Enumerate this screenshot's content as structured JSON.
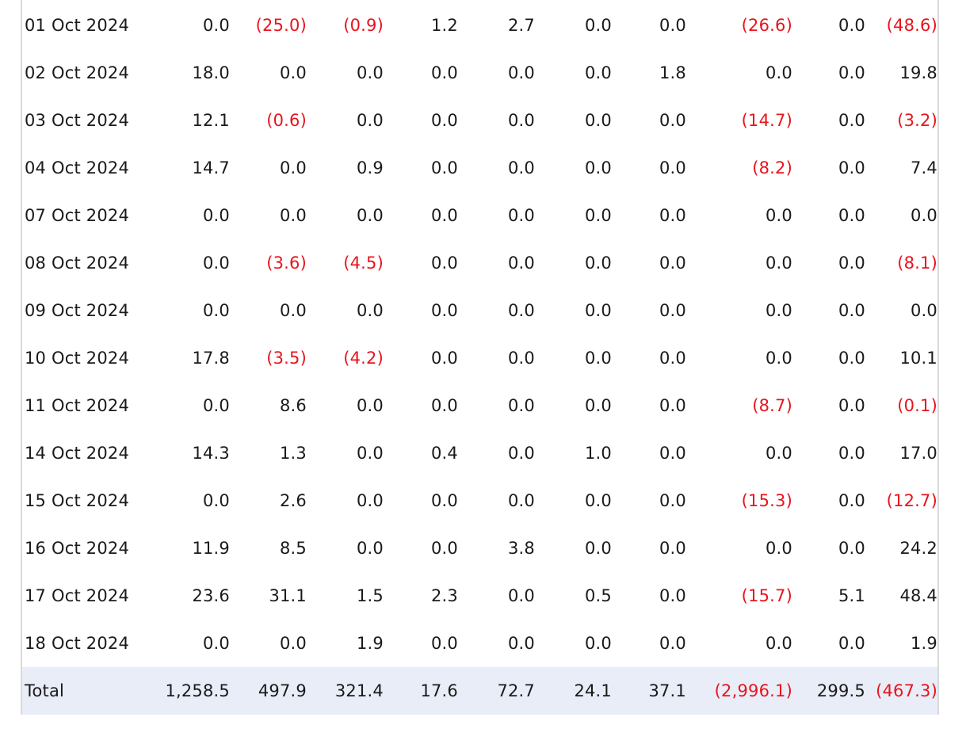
{
  "table": {
    "rows": [
      {
        "date": "01 Oct 2024",
        "cells": [
          {
            "v": "0.0",
            "neg": false
          },
          {
            "v": "(25.0)",
            "neg": true
          },
          {
            "v": "(0.9)",
            "neg": true
          },
          {
            "v": "1.2",
            "neg": false
          },
          {
            "v": "2.7",
            "neg": false
          },
          {
            "v": "0.0",
            "neg": false
          },
          {
            "v": "0.0",
            "neg": false
          },
          {
            "v": "(26.6)",
            "neg": true
          },
          {
            "v": "0.0",
            "neg": false
          },
          {
            "v": "(48.6)",
            "neg": true
          }
        ]
      },
      {
        "date": "02 Oct 2024",
        "cells": [
          {
            "v": "18.0",
            "neg": false
          },
          {
            "v": "0.0",
            "neg": false
          },
          {
            "v": "0.0",
            "neg": false
          },
          {
            "v": "0.0",
            "neg": false
          },
          {
            "v": "0.0",
            "neg": false
          },
          {
            "v": "0.0",
            "neg": false
          },
          {
            "v": "1.8",
            "neg": false
          },
          {
            "v": "0.0",
            "neg": false
          },
          {
            "v": "0.0",
            "neg": false
          },
          {
            "v": "19.8",
            "neg": false
          }
        ]
      },
      {
        "date": "03 Oct 2024",
        "cells": [
          {
            "v": "12.1",
            "neg": false
          },
          {
            "v": "(0.6)",
            "neg": true
          },
          {
            "v": "0.0",
            "neg": false
          },
          {
            "v": "0.0",
            "neg": false
          },
          {
            "v": "0.0",
            "neg": false
          },
          {
            "v": "0.0",
            "neg": false
          },
          {
            "v": "0.0",
            "neg": false
          },
          {
            "v": "(14.7)",
            "neg": true
          },
          {
            "v": "0.0",
            "neg": false
          },
          {
            "v": "(3.2)",
            "neg": true
          }
        ]
      },
      {
        "date": "04 Oct 2024",
        "cells": [
          {
            "v": "14.7",
            "neg": false
          },
          {
            "v": "0.0",
            "neg": false
          },
          {
            "v": "0.9",
            "neg": false
          },
          {
            "v": "0.0",
            "neg": false
          },
          {
            "v": "0.0",
            "neg": false
          },
          {
            "v": "0.0",
            "neg": false
          },
          {
            "v": "0.0",
            "neg": false
          },
          {
            "v": "(8.2)",
            "neg": true
          },
          {
            "v": "0.0",
            "neg": false
          },
          {
            "v": "7.4",
            "neg": false
          }
        ]
      },
      {
        "date": "07 Oct 2024",
        "cells": [
          {
            "v": "0.0",
            "neg": false
          },
          {
            "v": "0.0",
            "neg": false
          },
          {
            "v": "0.0",
            "neg": false
          },
          {
            "v": "0.0",
            "neg": false
          },
          {
            "v": "0.0",
            "neg": false
          },
          {
            "v": "0.0",
            "neg": false
          },
          {
            "v": "0.0",
            "neg": false
          },
          {
            "v": "0.0",
            "neg": false
          },
          {
            "v": "0.0",
            "neg": false
          },
          {
            "v": "0.0",
            "neg": false
          }
        ]
      },
      {
        "date": "08 Oct 2024",
        "cells": [
          {
            "v": "0.0",
            "neg": false
          },
          {
            "v": "(3.6)",
            "neg": true
          },
          {
            "v": "(4.5)",
            "neg": true
          },
          {
            "v": "0.0",
            "neg": false
          },
          {
            "v": "0.0",
            "neg": false
          },
          {
            "v": "0.0",
            "neg": false
          },
          {
            "v": "0.0",
            "neg": false
          },
          {
            "v": "0.0",
            "neg": false
          },
          {
            "v": "0.0",
            "neg": false
          },
          {
            "v": "(8.1)",
            "neg": true
          }
        ]
      },
      {
        "date": "09 Oct 2024",
        "cells": [
          {
            "v": "0.0",
            "neg": false
          },
          {
            "v": "0.0",
            "neg": false
          },
          {
            "v": "0.0",
            "neg": false
          },
          {
            "v": "0.0",
            "neg": false
          },
          {
            "v": "0.0",
            "neg": false
          },
          {
            "v": "0.0",
            "neg": false
          },
          {
            "v": "0.0",
            "neg": false
          },
          {
            "v": "0.0",
            "neg": false
          },
          {
            "v": "0.0",
            "neg": false
          },
          {
            "v": "0.0",
            "neg": false
          }
        ]
      },
      {
        "date": "10 Oct 2024",
        "cells": [
          {
            "v": "17.8",
            "neg": false
          },
          {
            "v": "(3.5)",
            "neg": true
          },
          {
            "v": "(4.2)",
            "neg": true
          },
          {
            "v": "0.0",
            "neg": false
          },
          {
            "v": "0.0",
            "neg": false
          },
          {
            "v": "0.0",
            "neg": false
          },
          {
            "v": "0.0",
            "neg": false
          },
          {
            "v": "0.0",
            "neg": false
          },
          {
            "v": "0.0",
            "neg": false
          },
          {
            "v": "10.1",
            "neg": false
          }
        ]
      },
      {
        "date": "11 Oct 2024",
        "cells": [
          {
            "v": "0.0",
            "neg": false
          },
          {
            "v": "8.6",
            "neg": false
          },
          {
            "v": "0.0",
            "neg": false
          },
          {
            "v": "0.0",
            "neg": false
          },
          {
            "v": "0.0",
            "neg": false
          },
          {
            "v": "0.0",
            "neg": false
          },
          {
            "v": "0.0",
            "neg": false
          },
          {
            "v": "(8.7)",
            "neg": true
          },
          {
            "v": "0.0",
            "neg": false
          },
          {
            "v": "(0.1)",
            "neg": true
          }
        ]
      },
      {
        "date": "14 Oct 2024",
        "cells": [
          {
            "v": "14.3",
            "neg": false
          },
          {
            "v": "1.3",
            "neg": false
          },
          {
            "v": "0.0",
            "neg": false
          },
          {
            "v": "0.4",
            "neg": false
          },
          {
            "v": "0.0",
            "neg": false
          },
          {
            "v": "1.0",
            "neg": false
          },
          {
            "v": "0.0",
            "neg": false
          },
          {
            "v": "0.0",
            "neg": false
          },
          {
            "v": "0.0",
            "neg": false
          },
          {
            "v": "17.0",
            "neg": false
          }
        ]
      },
      {
        "date": "15 Oct 2024",
        "cells": [
          {
            "v": "0.0",
            "neg": false
          },
          {
            "v": "2.6",
            "neg": false
          },
          {
            "v": "0.0",
            "neg": false
          },
          {
            "v": "0.0",
            "neg": false
          },
          {
            "v": "0.0",
            "neg": false
          },
          {
            "v": "0.0",
            "neg": false
          },
          {
            "v": "0.0",
            "neg": false
          },
          {
            "v": "(15.3)",
            "neg": true
          },
          {
            "v": "0.0",
            "neg": false
          },
          {
            "v": "(12.7)",
            "neg": true
          }
        ]
      },
      {
        "date": "16 Oct 2024",
        "cells": [
          {
            "v": "11.9",
            "neg": false
          },
          {
            "v": "8.5",
            "neg": false
          },
          {
            "v": "0.0",
            "neg": false
          },
          {
            "v": "0.0",
            "neg": false
          },
          {
            "v": "3.8",
            "neg": false
          },
          {
            "v": "0.0",
            "neg": false
          },
          {
            "v": "0.0",
            "neg": false
          },
          {
            "v": "0.0",
            "neg": false
          },
          {
            "v": "0.0",
            "neg": false
          },
          {
            "v": "24.2",
            "neg": false
          }
        ]
      },
      {
        "date": "17 Oct 2024",
        "cells": [
          {
            "v": "23.6",
            "neg": false
          },
          {
            "v": "31.1",
            "neg": false
          },
          {
            "v": "1.5",
            "neg": false
          },
          {
            "v": "2.3",
            "neg": false
          },
          {
            "v": "0.0",
            "neg": false
          },
          {
            "v": "0.5",
            "neg": false
          },
          {
            "v": "0.0",
            "neg": false
          },
          {
            "v": "(15.7)",
            "neg": true
          },
          {
            "v": "5.1",
            "neg": false
          },
          {
            "v": "48.4",
            "neg": false
          }
        ]
      },
      {
        "date": "18 Oct 2024",
        "cells": [
          {
            "v": "0.0",
            "neg": false
          },
          {
            "v": "0.0",
            "neg": false
          },
          {
            "v": "1.9",
            "neg": false
          },
          {
            "v": "0.0",
            "neg": false
          },
          {
            "v": "0.0",
            "neg": false
          },
          {
            "v": "0.0",
            "neg": false
          },
          {
            "v": "0.0",
            "neg": false
          },
          {
            "v": "0.0",
            "neg": false
          },
          {
            "v": "0.0",
            "neg": false
          },
          {
            "v": "1.9",
            "neg": false
          }
        ]
      }
    ],
    "total": {
      "label": "Total",
      "cells": [
        {
          "v": "1,258.5",
          "neg": false
        },
        {
          "v": "497.9",
          "neg": false
        },
        {
          "v": "321.4",
          "neg": false
        },
        {
          "v": "17.6",
          "neg": false
        },
        {
          "v": "72.7",
          "neg": false
        },
        {
          "v": "24.1",
          "neg": false
        },
        {
          "v": "37.1",
          "neg": false
        },
        {
          "v": "(2,996.1)",
          "neg": true
        },
        {
          "v": "299.5",
          "neg": false
        },
        {
          "v": "(467.3)",
          "neg": true
        }
      ]
    },
    "colors": {
      "negative": "#e8141e",
      "total_row_bg": "#e8edf7",
      "text": "#1a1a1a",
      "border": "#d9d9d9"
    }
  }
}
